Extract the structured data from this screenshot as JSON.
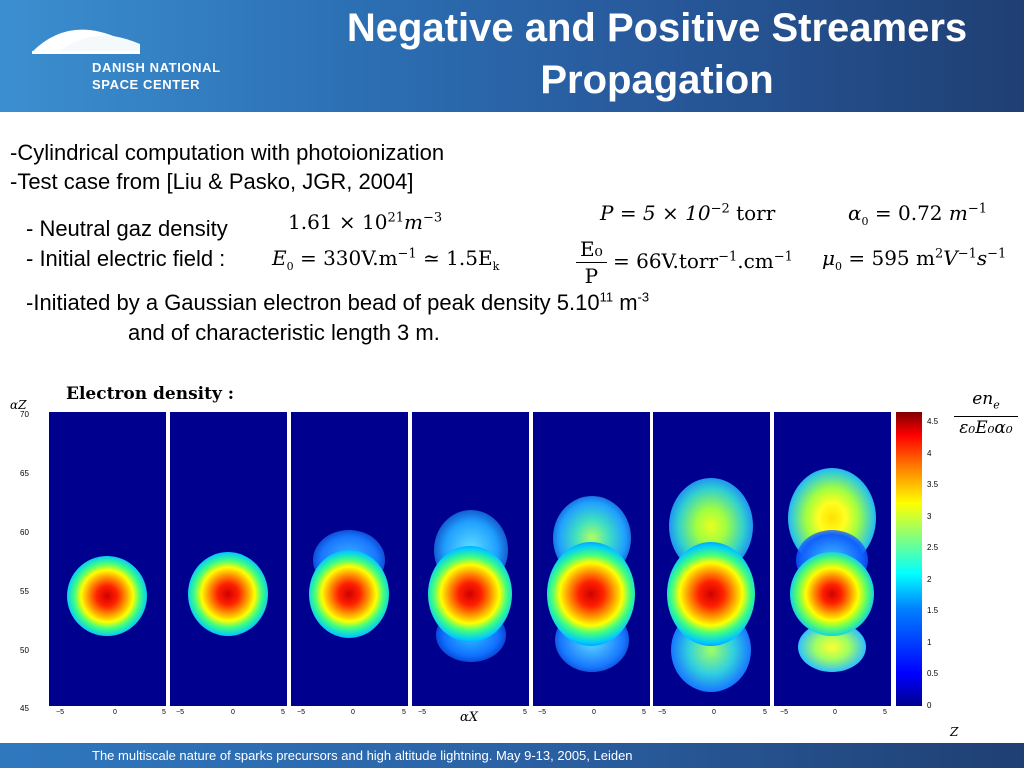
{
  "header": {
    "logo_line1": "DANISH NATIONAL",
    "logo_line2": "SPACE CENTER",
    "title_line1": "Negative and Positive Streamers",
    "title_line2": "Propagation"
  },
  "bullets": {
    "b1": "-Cylindrical computation with photoionization",
    "b2": "-Test case from [Liu & Pasko, JGR, 2004]",
    "b3": "- Neutral gaz density",
    "b4": "- Initial electric field :",
    "b5_prefix": "-Initiated by a Gaussian electron bead of peak density 5.10",
    "b5_exp": "11",
    "b5_unit": " m",
    "b5_unit_exp": "-3",
    "b6": "and of characteristic length 3 m."
  },
  "equations": {
    "density_mant": "1.61 × 10",
    "density_exp": "21",
    "density_unit": "m",
    "density_unit_exp": "−3",
    "pressure": "P = 5 × 10",
    "pressure_exp": "−2",
    "pressure_unit": " torr",
    "alpha": "α",
    "alpha_sub": "0",
    "alpha_val": "= 0.72",
    "alpha_unit": "m",
    "alpha_unit_exp": "−1",
    "field": "E",
    "field_sub": "0",
    "field_val": "= 330V.m",
    "field_exp": "−1",
    "field_approx": "≃ 1.5E",
    "field_approx_sub": "k",
    "ratio_num": "E₀",
    "ratio_den": "P",
    "ratio_val": "= 66V.torr",
    "ratio_exp1": "−1",
    "ratio_mid": ".cm",
    "ratio_exp2": "−1",
    "mu": "μ",
    "mu_sub": "0",
    "mu_val": "= 595 m",
    "mu_exp1": "2",
    "mu_mid": "V",
    "mu_exp2": "−1",
    "mu_end": "s",
    "mu_exp3": "−1"
  },
  "figure": {
    "caption": "Electron density :",
    "y_axis_label": "αZ",
    "x_axis_label": "αX",
    "z_label": "Z",
    "y_ticks": [
      "70",
      "65",
      "60",
      "55",
      "50",
      "45"
    ],
    "x_ticks": [
      "−5",
      "0",
      "5"
    ],
    "colorbar_ticks": [
      "4.5",
      "4",
      "3.5",
      "3",
      "2.5",
      "2",
      "1.5",
      "1",
      "0.5",
      "0"
    ],
    "colorbar_num": "en",
    "colorbar_num_sub": "e",
    "colorbar_den": "ε₀E₀α₀",
    "colorbar_range": [
      0,
      4.6
    ],
    "panel_count": 7
  },
  "footer": {
    "text": "The multiscale nature of sparks precursors and high altitude lightning. May 9-13, 2005, Leiden"
  },
  "colors": {
    "header_start": "#3b8fd0",
    "header_end": "#1f3f73",
    "plot_background": "#00008f"
  }
}
